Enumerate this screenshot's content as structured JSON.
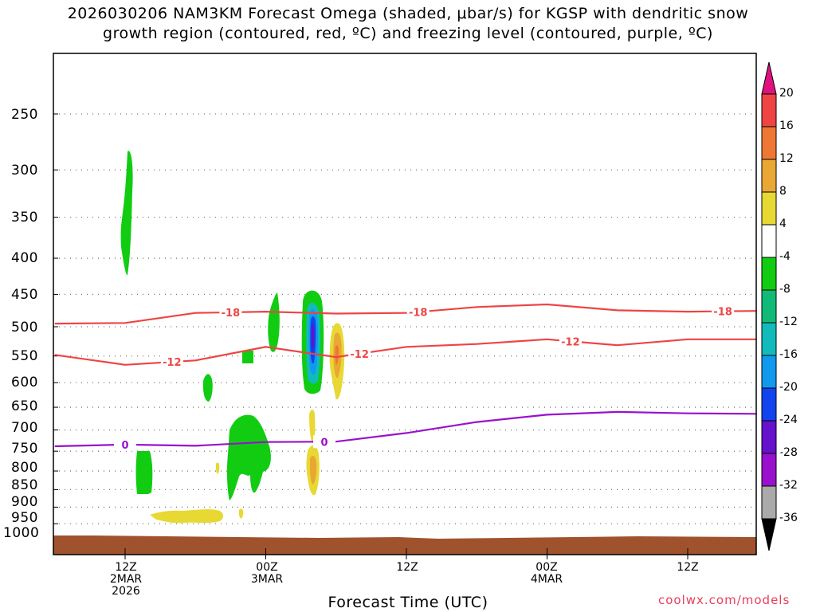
{
  "title": {
    "line1": "2026030206 NAM3KM Forecast Omega (shaded, μbar/s) for KGSP with dendritic snow",
    "line2": "growth region (contoured, red, ºC) and freezing level (contoured, purple, ºC)"
  },
  "xaxis": {
    "title": "Forecast Time (UTC)",
    "ticks": [
      {
        "l1": "12Z",
        "l2": "2MAR",
        "l3": "2026"
      },
      {
        "l1": "00Z",
        "l2": "3MAR",
        "l3": ""
      },
      {
        "l1": "12Z",
        "l2": "",
        "l3": ""
      },
      {
        "l1": "00Z",
        "l2": "4MAR",
        "l3": ""
      },
      {
        "l1": "12Z",
        "l2": "",
        "l3": ""
      }
    ]
  },
  "yaxis": {
    "ticks": [
      "250",
      "300",
      "350",
      "400",
      "450",
      "500",
      "550",
      "600",
      "650",
      "700",
      "750",
      "800",
      "850",
      "900",
      "950",
      "1000"
    ]
  },
  "colorbar": {
    "labels": [
      "20",
      "16",
      "12",
      "8",
      "4",
      "-4",
      "-8",
      "-12",
      "-16",
      "-20",
      "-24",
      "-28",
      "-32",
      "-36"
    ],
    "colors": [
      "#ee4444",
      "#ee7733",
      "#e8a833",
      "#e8d833",
      "#ffffff",
      "#11cc11",
      "#11bb77",
      "#11bbbb",
      "#1199ee",
      "#1144ee",
      "#6611cc",
      "#9911cc",
      "#aaaaaa"
    ],
    "top_color": "#e0117f",
    "bottom_color": "#000000"
  },
  "colors": {
    "dgz": "#ee4444",
    "freezing": "#9911cc",
    "ground": "#a0522d"
  },
  "chart_data": {
    "type": "contour",
    "forecast_start": "2026030206",
    "x_ticks": [
      "12Z 2MAR 2026",
      "00Z 3MAR",
      "12Z",
      "00Z 4MAR",
      "12Z"
    ],
    "y_ticks_hPa": [
      250,
      300,
      350,
      400,
      450,
      500,
      550,
      600,
      650,
      700,
      750,
      800,
      850,
      900,
      950,
      1000
    ],
    "y_scale": "log (pressure)",
    "grid": true,
    "contour_labels": {
      "dgz_minus18": "-18",
      "dgz_minus12": "-12",
      "freezing_0": "0"
    },
    "series": [
      {
        "name": "-18",
        "x": [
          "2026-03-02 06Z",
          "2026-03-02 12Z",
          "2026-03-02 18Z",
          "2026-03-03 00Z",
          "2026-03-03 06Z",
          "2026-03-03 12Z",
          "2026-03-03 18Z",
          "2026-03-04 00Z",
          "2026-03-04 06Z",
          "2026-03-04 12Z",
          "2026-03-04 18Z"
        ],
        "y": [
          495,
          494,
          478,
          476,
          479,
          478,
          469,
          465,
          474,
          476,
          475
        ]
      },
      {
        "name": "-12",
        "x": [
          "2026-03-02 06Z",
          "2026-03-02 12Z",
          "2026-03-02 18Z",
          "2026-03-03 00Z",
          "2026-03-03 06Z",
          "2026-03-03 12Z",
          "2026-03-03 18Z",
          "2026-03-04 00Z",
          "2026-03-04 06Z",
          "2026-03-04 12Z",
          "2026-03-04 18Z"
        ],
        "y": [
          548,
          566,
          558,
          534,
          552,
          534,
          529,
          521,
          531,
          521,
          521
        ]
      },
      {
        "name": "0",
        "x": [
          "2026-03-02 06Z",
          "2026-03-02 12Z",
          "2026-03-02 18Z",
          "2026-03-03 00Z",
          "2026-03-03 06Z",
          "2026-03-03 12Z",
          "2026-03-03 18Z",
          "2026-03-04 00Z",
          "2026-03-04 06Z",
          "2026-03-04 12Z",
          "2026-03-04 18Z"
        ],
        "y": [
          738,
          734,
          737,
          728,
          727,
          707,
          682,
          666,
          660,
          663,
          664
        ]
      }
    ],
    "omega_features": [
      {
        "time": "2026-03-02 12Z",
        "p_top": 280,
        "p_bottom": 425,
        "omega_min": -8
      },
      {
        "time": "2026-03-03 06Z",
        "p_top": 450,
        "p_bottom": 610,
        "omega_min": -24
      },
      {
        "time": "2026-03-03 08Z",
        "p_top": 500,
        "p_bottom": 650,
        "omega_max": 12
      },
      {
        "time": "2026-03-03 06Z",
        "p_top": 680,
        "p_bottom": 860,
        "omega_max": 8
      },
      {
        "time": "2026-03-02 23Z",
        "p_top": 690,
        "p_bottom": 900,
        "omega_min": -8
      }
    ]
  }
}
